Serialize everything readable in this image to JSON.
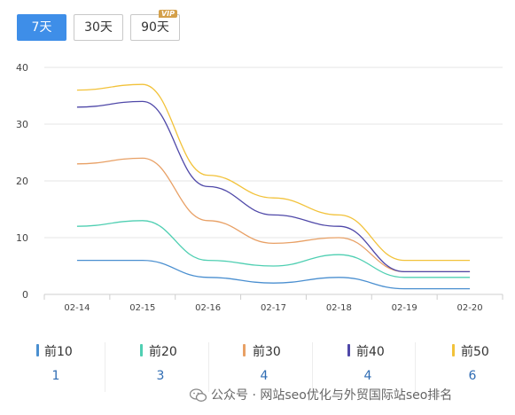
{
  "range_tabs": [
    {
      "label": "7天",
      "active": true
    },
    {
      "label": "30天",
      "active": false
    },
    {
      "label": "90天",
      "active": false,
      "badge": "VIP"
    }
  ],
  "chart_data": {
    "type": "line",
    "x": [
      "02-14",
      "02-15",
      "02-16",
      "02-17",
      "02-18",
      "02-19",
      "02-20"
    ],
    "ylim": [
      0,
      40
    ],
    "yticks": [
      0,
      10,
      20,
      30,
      40
    ],
    "grid": true,
    "series": [
      {
        "name": "前10",
        "color": "#4a8fd0",
        "values": [
          6,
          6,
          3,
          2,
          3,
          1,
          1
        ]
      },
      {
        "name": "前20",
        "color": "#4fcfb2",
        "values": [
          12,
          13,
          6,
          5,
          7,
          3,
          3
        ]
      },
      {
        "name": "前30",
        "color": "#e8a065",
        "values": [
          23,
          24,
          13,
          9,
          10,
          4,
          4
        ]
      },
      {
        "name": "前40",
        "color": "#4f48a8",
        "values": [
          33,
          34,
          19,
          14,
          12,
          4,
          4
        ]
      },
      {
        "name": "前50",
        "color": "#f2c23a",
        "values": [
          36,
          37,
          21,
          17,
          14,
          6,
          6
        ]
      }
    ]
  },
  "legend": [
    {
      "label": "前10",
      "value": "1",
      "color": "#4a8fd0"
    },
    {
      "label": "前20",
      "value": "3",
      "color": "#4fcfb2"
    },
    {
      "label": "前30",
      "value": "4",
      "color": "#e8a065"
    },
    {
      "label": "前40",
      "value": "4",
      "color": "#4f48a8"
    },
    {
      "label": "前50",
      "value": "6",
      "color": "#f2c23a"
    }
  ],
  "watermark": {
    "text": "公众号 · 网站seo优化与外贸国际站seo排名",
    "icon": "wechat-icon"
  }
}
